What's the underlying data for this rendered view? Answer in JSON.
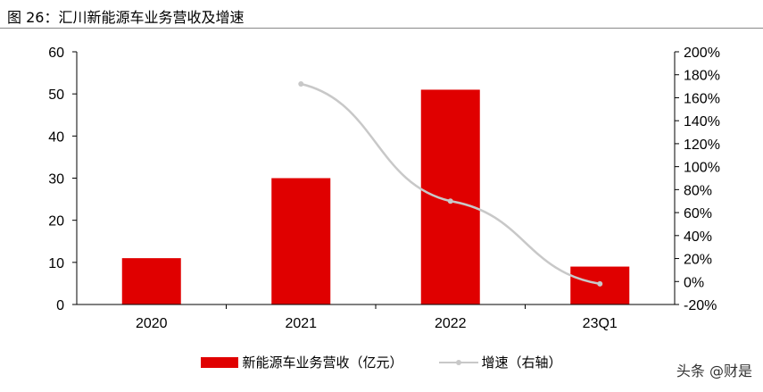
{
  "title": "图 26：汇川新能源车业务营收及增速",
  "watermark": "头条 @财是",
  "chart_data": {
    "type": "bar",
    "title": "图 26：汇川新能源车业务营收及增速",
    "categories": [
      "2020",
      "2021",
      "2022",
      "23Q1"
    ],
    "series": [
      {
        "name": "新能源车业务营收（亿元）",
        "type": "bar",
        "axis": "left",
        "color": "#e00000",
        "values": [
          11,
          30,
          51,
          9
        ]
      },
      {
        "name": "增速（右轴）",
        "type": "line",
        "axis": "right",
        "color": "#c8c8c8",
        "values": [
          null,
          172,
          70,
          -2
        ]
      }
    ],
    "y_left": {
      "lim": [
        0,
        60
      ],
      "ticks": [
        "0",
        "10",
        "20",
        "30",
        "40",
        "50",
        "60"
      ]
    },
    "y_right": {
      "lim": [
        -20,
        200
      ],
      "unit": "%",
      "ticks": [
        "-20%",
        "0%",
        "20%",
        "40%",
        "60%",
        "80%",
        "100%",
        "120%",
        "140%",
        "160%",
        "180%",
        "200%"
      ]
    },
    "grid": false,
    "legend": "bottom"
  }
}
